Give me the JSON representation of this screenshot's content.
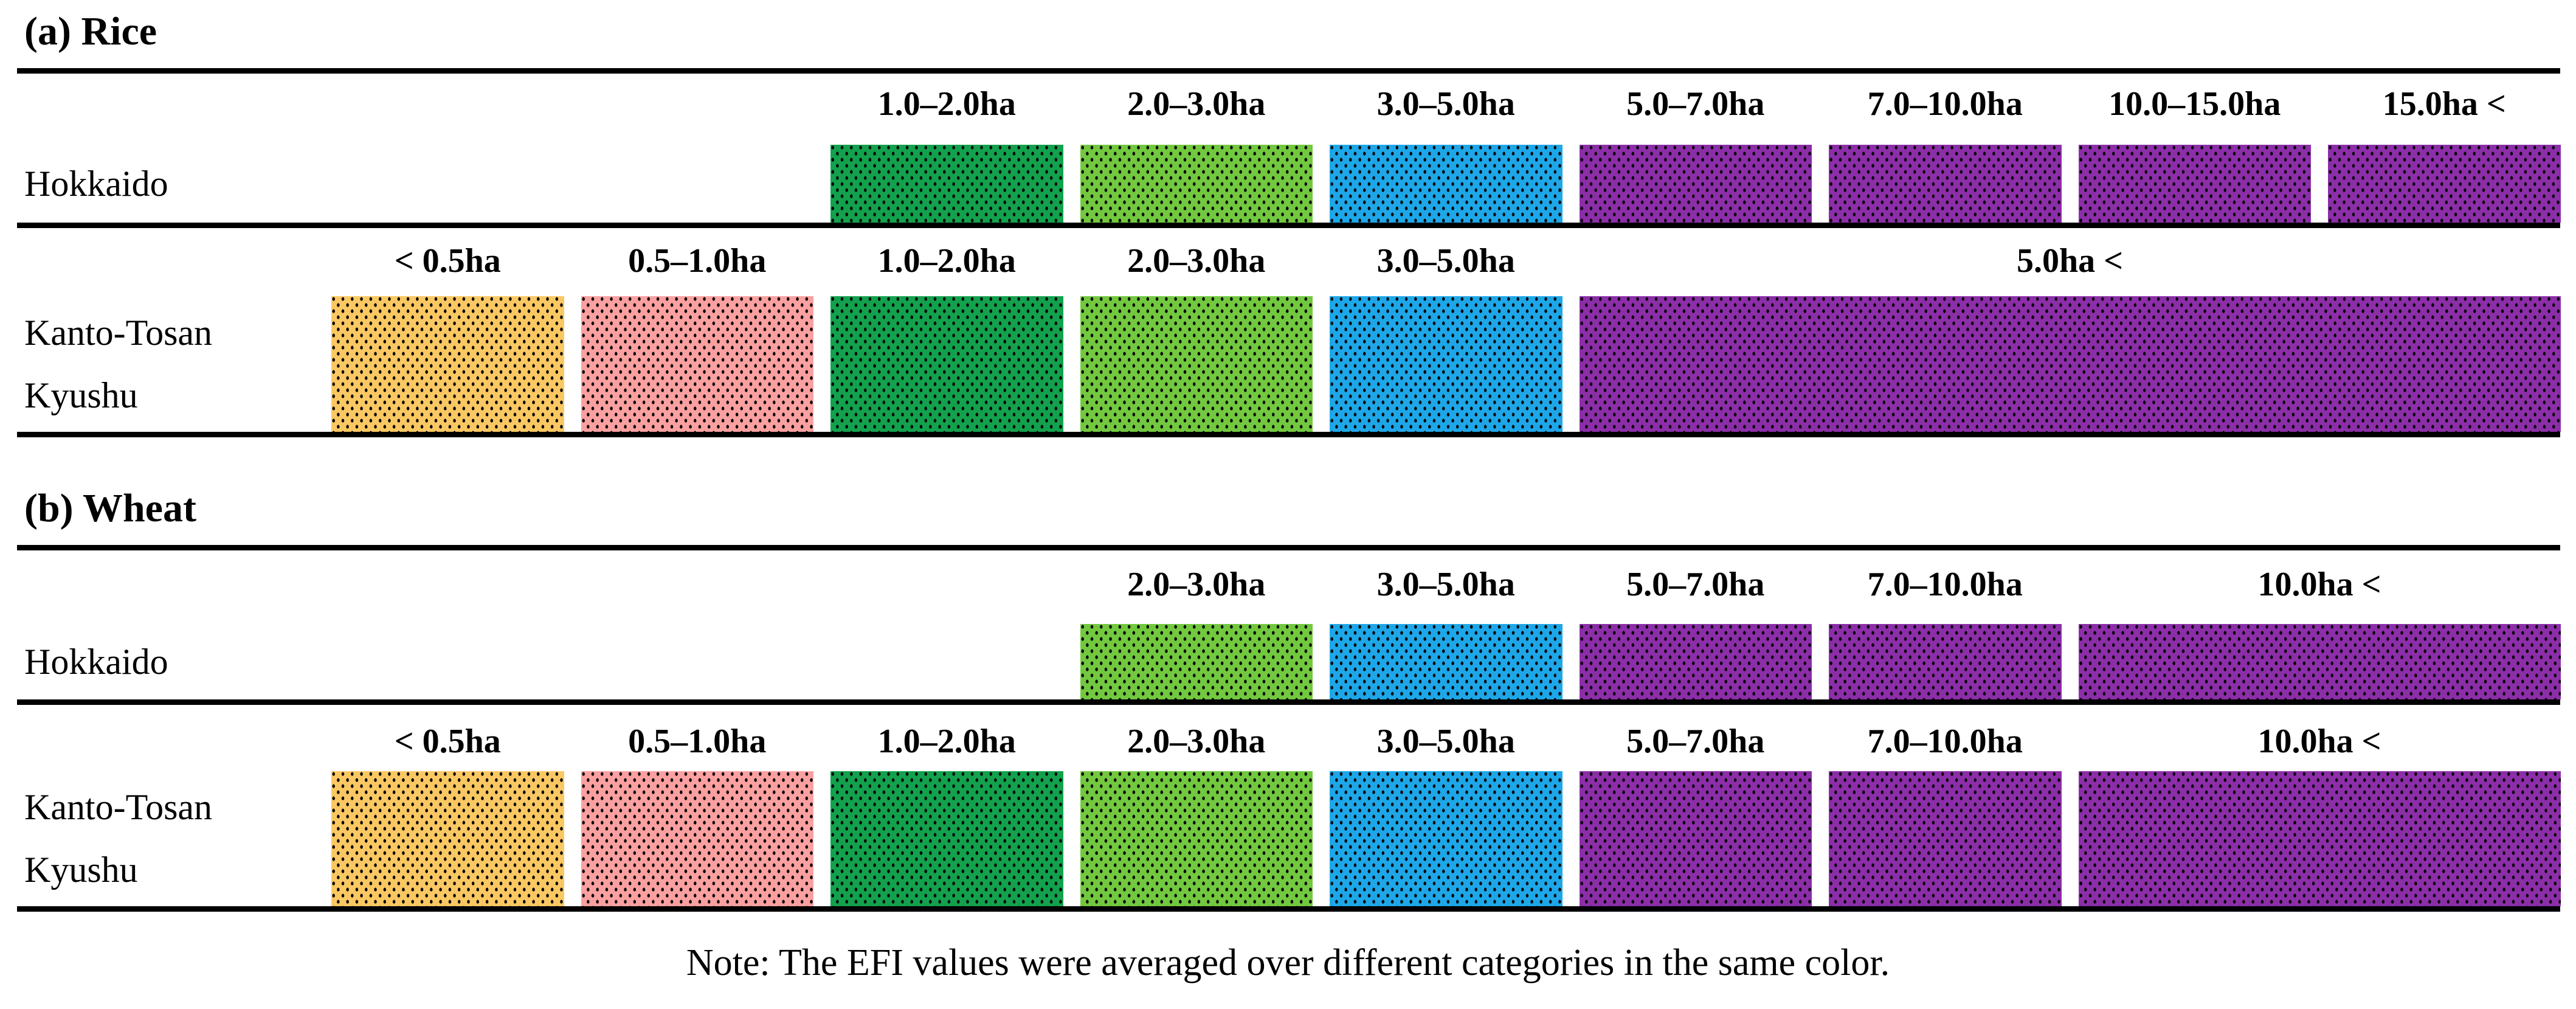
{
  "colors": {
    "yellow": "#FAC863",
    "pink": "#FAA0A0",
    "dark_green": "#13A14D",
    "light_green": "#72C83F",
    "blue": "#1EA7E8",
    "purple": "#8C2EA8",
    "rule": "#000000",
    "dot": "#000000",
    "background": "#FFFFFF",
    "text": "#000000"
  },
  "chart_data": {
    "type": "table",
    "note": "Note: The EFI values were averaged over different categories in the same color.",
    "sections": [
      {
        "id": "rice",
        "title": "(a) Rice",
        "rows": [
          {
            "region_lines": [
              "Hokkaido"
            ],
            "segments": [
              {
                "label": "1.0–2.0ha",
                "color": "dark_green",
                "col": 2,
                "span": 1
              },
              {
                "label": "2.0–3.0ha",
                "color": "light_green",
                "col": 3,
                "span": 1
              },
              {
                "label": "3.0–5.0ha",
                "color": "blue",
                "col": 4,
                "span": 1
              },
              {
                "label": "5.0–7.0ha",
                "color": "purple",
                "col": 5,
                "span": 1
              },
              {
                "label": "7.0–10.0ha",
                "color": "purple",
                "col": 6,
                "span": 1
              },
              {
                "label": "10.0–15.0ha",
                "color": "purple",
                "col": 7,
                "span": 1
              },
              {
                "label": "15.0ha <",
                "color": "purple",
                "col": 8,
                "span": 1
              }
            ]
          },
          {
            "region_lines": [
              "Kanto-Tosan",
              "Kyushu"
            ],
            "segments": [
              {
                "label": "< 0.5ha",
                "color": "yellow",
                "col": 0,
                "span": 1
              },
              {
                "label": "0.5–1.0ha",
                "color": "pink",
                "col": 1,
                "span": 1
              },
              {
                "label": "1.0–2.0ha",
                "color": "dark_green",
                "col": 2,
                "span": 1
              },
              {
                "label": "2.0–3.0ha",
                "color": "light_green",
                "col": 3,
                "span": 1
              },
              {
                "label": "3.0–5.0ha",
                "color": "blue",
                "col": 4,
                "span": 1
              },
              {
                "label": "5.0ha <",
                "color": "purple",
                "col": 5,
                "span": 4
              }
            ]
          }
        ]
      },
      {
        "id": "wheat",
        "title": "(b) Wheat",
        "rows": [
          {
            "region_lines": [
              "Hokkaido"
            ],
            "segments": [
              {
                "label": "2.0–3.0ha",
                "color": "light_green",
                "col": 3,
                "span": 1
              },
              {
                "label": "3.0–5.0ha",
                "color": "blue",
                "col": 4,
                "span": 1
              },
              {
                "label": "5.0–7.0ha",
                "color": "purple",
                "col": 5,
                "span": 1
              },
              {
                "label": "7.0–10.0ha",
                "color": "purple",
                "col": 6,
                "span": 1
              },
              {
                "label": "10.0ha <",
                "color": "purple",
                "col": 7,
                "span": 2
              }
            ]
          },
          {
            "region_lines": [
              "Kanto-Tosan",
              "Kyushu"
            ],
            "segments": [
              {
                "label": "< 0.5ha",
                "color": "yellow",
                "col": 0,
                "span": 1
              },
              {
                "label": "0.5–1.0ha",
                "color": "pink",
                "col": 1,
                "span": 1
              },
              {
                "label": "1.0–2.0ha",
                "color": "dark_green",
                "col": 2,
                "span": 1
              },
              {
                "label": "2.0–3.0ha",
                "color": "light_green",
                "col": 3,
                "span": 1
              },
              {
                "label": "3.0–5.0ha",
                "color": "blue",
                "col": 4,
                "span": 1
              },
              {
                "label": "5.0–7.0ha",
                "color": "purple",
                "col": 5,
                "span": 1
              },
              {
                "label": "7.0–10.0ha",
                "color": "purple",
                "col": 6,
                "span": 1
              },
              {
                "label": "10.0ha <",
                "color": "purple",
                "col": 7,
                "span": 2
              }
            ]
          }
        ]
      }
    ]
  }
}
